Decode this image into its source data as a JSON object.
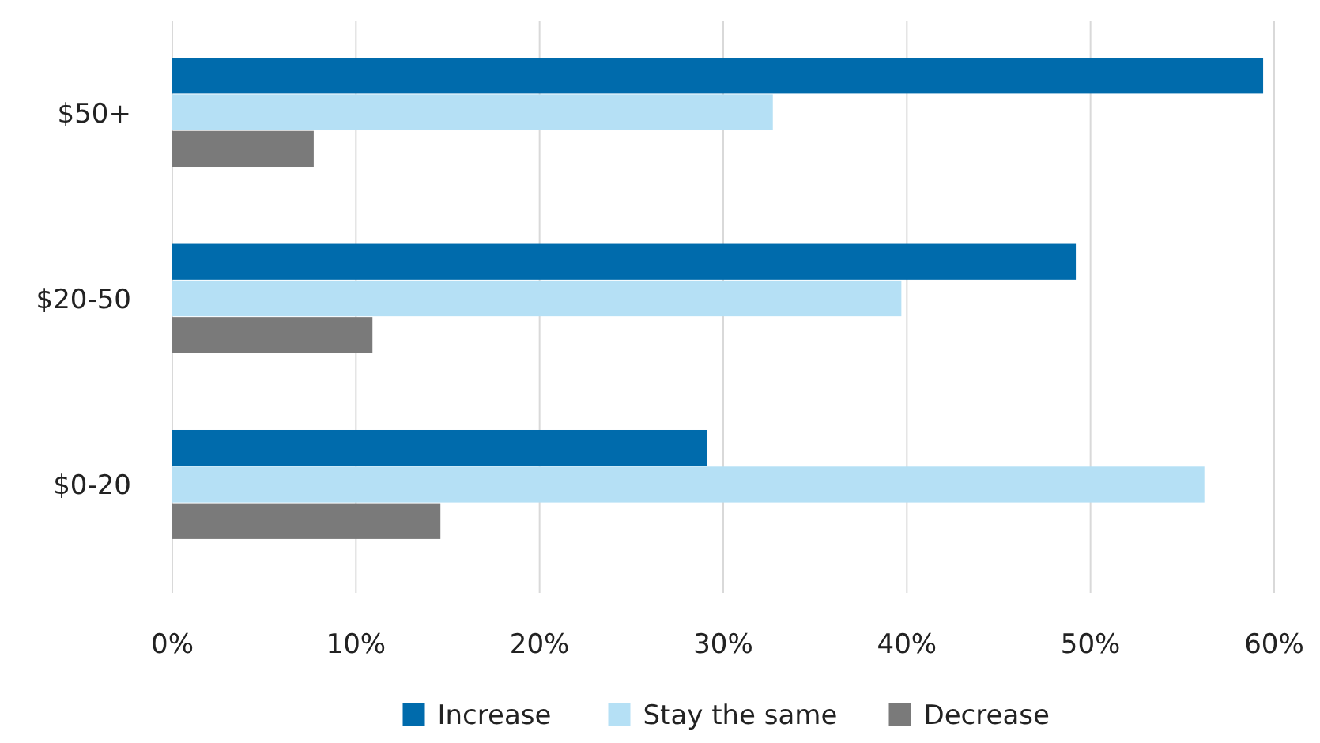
{
  "chart_data": {
    "type": "bar",
    "orientation": "horizontal",
    "categories": [
      "$50+",
      "$20-50",
      "$0-20"
    ],
    "series": [
      {
        "name": "Increase",
        "color": "#006bac",
        "values": [
          59.4,
          49.2,
          29.1
        ]
      },
      {
        "name": "Stay the same",
        "color": "#b5e0f5",
        "values": [
          32.7,
          39.7,
          56.2
        ]
      },
      {
        "name": "Decrease",
        "color": "#7a7a7a",
        "values": [
          7.7,
          10.9,
          14.6
        ]
      }
    ],
    "xlim": [
      0,
      60
    ],
    "xticks": [
      {
        "value": 0,
        "label": "0%"
      },
      {
        "value": 10,
        "label": "10%"
      },
      {
        "value": 20,
        "label": "20%"
      },
      {
        "value": 30,
        "label": "30%"
      },
      {
        "value": 40,
        "label": "40%"
      },
      {
        "value": 50,
        "label": "50%"
      },
      {
        "value": 60,
        "label": "60%"
      }
    ],
    "grid": "x",
    "legend": "bottom"
  }
}
